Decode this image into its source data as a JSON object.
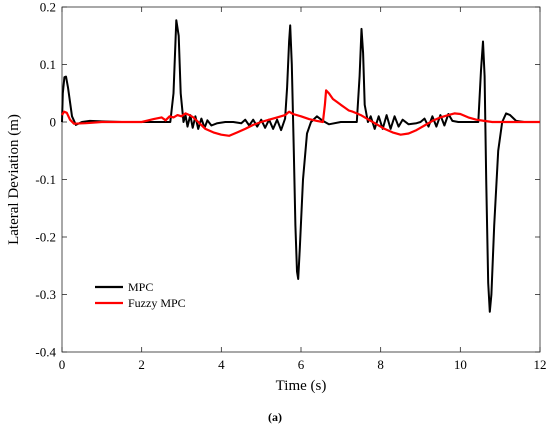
{
  "caption": "(a)",
  "chart_data": {
    "type": "line",
    "xlabel": "Time (s)",
    "ylabel": "Lateral Deviation (m)",
    "xlim": [
      0,
      12
    ],
    "ylim": [
      -0.4,
      0.2
    ],
    "xticks": [
      0,
      2,
      4,
      6,
      8,
      10,
      12
    ],
    "yticks": [
      -0.4,
      -0.3,
      -0.2,
      -0.1,
      0,
      0.1,
      0.2
    ],
    "xtick_labels": [
      "0",
      "2",
      "4",
      "6",
      "8",
      "10",
      "12"
    ],
    "ytick_labels": [
      "-0.4",
      "-0.3",
      "-0.2",
      "-0.1",
      "0",
      "0.1",
      "0.2"
    ],
    "grid": false,
    "legend_position": "lower-left",
    "series": [
      {
        "name": "MPC",
        "color": "#000000",
        "points": [
          [
            0,
            0.0
          ],
          [
            0.02,
            0.05
          ],
          [
            0.06,
            0.078
          ],
          [
            0.1,
            0.079
          ],
          [
            0.15,
            0.06
          ],
          [
            0.25,
            0.01
          ],
          [
            0.35,
            -0.005
          ],
          [
            0.5,
            0.0
          ],
          [
            0.7,
            0.002
          ],
          [
            1.0,
            0.001
          ],
          [
            1.5,
            0.0
          ],
          [
            2.0,
            0.0
          ],
          [
            2.5,
            0.0
          ],
          [
            2.72,
            0.0
          ],
          [
            2.8,
            0.05
          ],
          [
            2.87,
            0.177
          ],
          [
            2.93,
            0.15
          ],
          [
            2.98,
            0.05
          ],
          [
            3.05,
            0.0
          ],
          [
            3.1,
            0.012
          ],
          [
            3.15,
            -0.008
          ],
          [
            3.22,
            0.012
          ],
          [
            3.28,
            -0.01
          ],
          [
            3.35,
            0.01
          ],
          [
            3.42,
            -0.012
          ],
          [
            3.5,
            0.006
          ],
          [
            3.58,
            -0.01
          ],
          [
            3.65,
            0.003
          ],
          [
            3.75,
            -0.006
          ],
          [
            3.9,
            -0.002
          ],
          [
            4.1,
            0.0
          ],
          [
            4.3,
            0.0
          ],
          [
            4.5,
            -0.002
          ],
          [
            4.6,
            0.004
          ],
          [
            4.7,
            -0.006
          ],
          [
            4.8,
            0.004
          ],
          [
            4.9,
            -0.008
          ],
          [
            5.0,
            0.004
          ],
          [
            5.1,
            -0.01
          ],
          [
            5.2,
            0.004
          ],
          [
            5.3,
            -0.012
          ],
          [
            5.4,
            0.004
          ],
          [
            5.5,
            -0.014
          ],
          [
            5.6,
            0.006
          ],
          [
            5.65,
            0.06
          ],
          [
            5.7,
            0.14
          ],
          [
            5.73,
            0.168
          ],
          [
            5.77,
            0.1
          ],
          [
            5.82,
            -0.05
          ],
          [
            5.86,
            -0.18
          ],
          [
            5.9,
            -0.26
          ],
          [
            5.93,
            -0.273
          ],
          [
            5.97,
            -0.22
          ],
          [
            6.05,
            -0.1
          ],
          [
            6.15,
            -0.02
          ],
          [
            6.25,
            0.0
          ],
          [
            6.4,
            0.01
          ],
          [
            6.55,
            0.002
          ],
          [
            6.7,
            -0.004
          ],
          [
            7.0,
            0.0
          ],
          [
            7.3,
            0.0
          ],
          [
            7.4,
            0.0
          ],
          [
            7.47,
            0.08
          ],
          [
            7.52,
            0.162
          ],
          [
            7.56,
            0.12
          ],
          [
            7.6,
            0.03
          ],
          [
            7.68,
            0.0
          ],
          [
            7.75,
            0.01
          ],
          [
            7.85,
            -0.012
          ],
          [
            7.95,
            0.01
          ],
          [
            8.05,
            -0.012
          ],
          [
            8.15,
            0.012
          ],
          [
            8.25,
            -0.012
          ],
          [
            8.35,
            0.01
          ],
          [
            8.45,
            -0.008
          ],
          [
            8.55,
            0.004
          ],
          [
            8.7,
            -0.004
          ],
          [
            8.9,
            -0.002
          ],
          [
            9.0,
            0.0
          ],
          [
            9.1,
            0.006
          ],
          [
            9.2,
            -0.008
          ],
          [
            9.3,
            0.01
          ],
          [
            9.4,
            -0.008
          ],
          [
            9.5,
            0.012
          ],
          [
            9.6,
            -0.006
          ],
          [
            9.7,
            0.014
          ],
          [
            9.8,
            0.002
          ],
          [
            9.95,
            0.0
          ],
          [
            10.2,
            0.0
          ],
          [
            10.45,
            0.0
          ],
          [
            10.52,
            0.09
          ],
          [
            10.57,
            0.14
          ],
          [
            10.61,
            0.08
          ],
          [
            10.65,
            -0.1
          ],
          [
            10.7,
            -0.28
          ],
          [
            10.74,
            -0.33
          ],
          [
            10.78,
            -0.3
          ],
          [
            10.85,
            -0.18
          ],
          [
            10.95,
            -0.05
          ],
          [
            11.05,
            0.0
          ],
          [
            11.15,
            0.015
          ],
          [
            11.25,
            0.012
          ],
          [
            11.4,
            0.002
          ],
          [
            11.6,
            0.0
          ],
          [
            12.0,
            0.0
          ]
        ]
      },
      {
        "name": "Fuzzy MPC",
        "color": "#ff0000",
        "points": [
          [
            0,
            0.012
          ],
          [
            0.05,
            0.018
          ],
          [
            0.12,
            0.016
          ],
          [
            0.2,
            0.004
          ],
          [
            0.3,
            -0.003
          ],
          [
            0.6,
            -0.002
          ],
          [
            1.0,
            0.0
          ],
          [
            1.5,
            0.0
          ],
          [
            2.0,
            0.0
          ],
          [
            2.3,
            0.005
          ],
          [
            2.5,
            0.008
          ],
          [
            2.6,
            0.003
          ],
          [
            2.7,
            0.01
          ],
          [
            2.8,
            0.008
          ],
          [
            2.9,
            0.012
          ],
          [
            3.0,
            0.01
          ],
          [
            3.1,
            0.015
          ],
          [
            3.2,
            0.012
          ],
          [
            3.3,
            0.008
          ],
          [
            3.45,
            -0.002
          ],
          [
            3.6,
            -0.012
          ],
          [
            3.8,
            -0.018
          ],
          [
            4.0,
            -0.022
          ],
          [
            4.2,
            -0.024
          ],
          [
            4.4,
            -0.018
          ],
          [
            4.6,
            -0.012
          ],
          [
            4.8,
            -0.005
          ],
          [
            5.0,
            0.0
          ],
          [
            5.2,
            0.004
          ],
          [
            5.4,
            0.008
          ],
          [
            5.6,
            0.012
          ],
          [
            5.7,
            0.018
          ],
          [
            5.8,
            0.014
          ],
          [
            6.0,
            0.01
          ],
          [
            6.2,
            0.005
          ],
          [
            6.4,
            0.002
          ],
          [
            6.55,
            0.0
          ],
          [
            6.6,
            0.03
          ],
          [
            6.63,
            0.055
          ],
          [
            6.7,
            0.05
          ],
          [
            6.8,
            0.04
          ],
          [
            6.9,
            0.035
          ],
          [
            7.0,
            0.03
          ],
          [
            7.1,
            0.025
          ],
          [
            7.2,
            0.02
          ],
          [
            7.3,
            0.018
          ],
          [
            7.4,
            0.015
          ],
          [
            7.5,
            0.012
          ],
          [
            7.7,
            0.004
          ],
          [
            7.9,
            -0.004
          ],
          [
            8.1,
            -0.012
          ],
          [
            8.3,
            -0.018
          ],
          [
            8.5,
            -0.022
          ],
          [
            8.7,
            -0.02
          ],
          [
            8.9,
            -0.014
          ],
          [
            9.1,
            -0.006
          ],
          [
            9.3,
            0.002
          ],
          [
            9.5,
            0.008
          ],
          [
            9.7,
            0.012
          ],
          [
            9.85,
            0.015
          ],
          [
            10.0,
            0.014
          ],
          [
            10.2,
            0.008
          ],
          [
            10.4,
            0.004
          ],
          [
            10.6,
            0.002
          ],
          [
            10.8,
            0.0
          ],
          [
            11.0,
            0.0
          ],
          [
            11.5,
            0.0
          ],
          [
            12.0,
            0.0
          ]
        ]
      }
    ]
  }
}
